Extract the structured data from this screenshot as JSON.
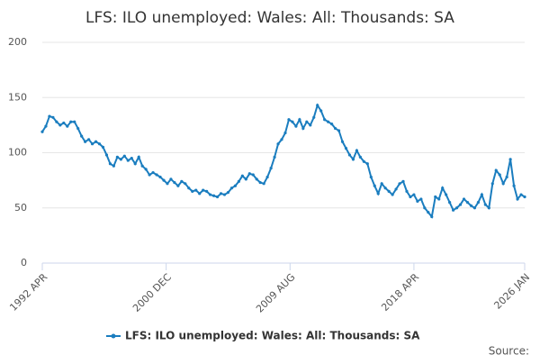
{
  "chart_data": {
    "type": "line",
    "title": "LFS: ILO unemployed: Wales: All: Thousands: SA",
    "x": [
      "1992-04",
      "1992-07",
      "1992-10",
      "1993-01",
      "1993-04",
      "1993-07",
      "1993-10",
      "1994-01",
      "1994-04",
      "1994-07",
      "1994-10",
      "1995-01",
      "1995-04",
      "1995-07",
      "1995-10",
      "1996-01",
      "1996-04",
      "1996-07",
      "1996-10",
      "1997-01",
      "1997-04",
      "1997-07",
      "1997-10",
      "1998-01",
      "1998-04",
      "1998-07",
      "1998-10",
      "1999-01",
      "1999-04",
      "1999-07",
      "1999-10",
      "2000-01",
      "2000-04",
      "2000-07",
      "2000-10",
      "2001-01",
      "2001-04",
      "2001-07",
      "2001-10",
      "2002-01",
      "2002-04",
      "2002-07",
      "2002-10",
      "2003-01",
      "2003-04",
      "2003-07",
      "2003-10",
      "2004-01",
      "2004-04",
      "2004-07",
      "2004-10",
      "2005-01",
      "2005-04",
      "2005-07",
      "2005-10",
      "2006-01",
      "2006-04",
      "2006-07",
      "2006-10",
      "2007-01",
      "2007-04",
      "2007-07",
      "2007-10",
      "2008-01",
      "2008-04",
      "2008-07",
      "2008-10",
      "2009-01",
      "2009-04",
      "2009-07",
      "2009-10",
      "2010-01",
      "2010-04",
      "2010-07",
      "2010-10",
      "2011-01",
      "2011-04",
      "2011-07",
      "2011-10",
      "2012-01",
      "2012-04",
      "2012-07",
      "2012-10",
      "2013-01",
      "2013-04",
      "2013-07",
      "2013-10",
      "2014-01",
      "2014-04",
      "2014-07",
      "2014-10",
      "2015-01",
      "2015-04",
      "2015-07",
      "2015-10",
      "2016-01",
      "2016-04",
      "2016-07",
      "2016-10",
      "2017-01",
      "2017-04",
      "2017-07",
      "2017-10",
      "2018-01",
      "2018-04",
      "2018-07",
      "2018-10",
      "2019-01",
      "2019-04",
      "2019-07",
      "2019-10",
      "2020-01",
      "2020-04",
      "2020-07",
      "2020-10",
      "2021-01",
      "2021-04",
      "2021-07",
      "2021-10",
      "2022-01",
      "2022-04",
      "2022-07",
      "2022-10",
      "2023-01",
      "2023-04",
      "2023-07",
      "2023-10",
      "2024-01",
      "2024-04",
      "2024-07",
      "2024-10",
      "2025-01",
      "2025-04",
      "2025-07",
      "2025-10",
      "2026-01"
    ],
    "series": [
      {
        "name": "LFS: ILO unemployed: Wales: All: Thousands: SA",
        "color": "#1a7dbf",
        "values": [
          119,
          124,
          133,
          132,
          128,
          125,
          127,
          124,
          128,
          128,
          122,
          115,
          110,
          112,
          108,
          110,
          108,
          105,
          98,
          90,
          88,
          96,
          94,
          97,
          93,
          95,
          90,
          96,
          88,
          85,
          80,
          82,
          80,
          78,
          75,
          72,
          76,
          73,
          70,
          74,
          72,
          68,
          65,
          66,
          63,
          66,
          65,
          62,
          61,
          60,
          63,
          62,
          64,
          68,
          70,
          74,
          79,
          76,
          81,
          80,
          76,
          73,
          72,
          78,
          86,
          96,
          108,
          112,
          118,
          130,
          128,
          124,
          130,
          122,
          128,
          125,
          132,
          143,
          138,
          130,
          128,
          126,
          122,
          120,
          110,
          104,
          98,
          94,
          102,
          96,
          92,
          90,
          78,
          70,
          63,
          72,
          68,
          65,
          62,
          67,
          72,
          74,
          65,
          60,
          62,
          56,
          58,
          50,
          46,
          42,
          60,
          58,
          68,
          62,
          55,
          48,
          50,
          53,
          58,
          55,
          52,
          50,
          55,
          62,
          53,
          50,
          72,
          84,
          80,
          72,
          78,
          94,
          70,
          58,
          62,
          60
        ]
      }
    ],
    "xlim": [
      "1992-04",
      "2026-01"
    ],
    "xticks": [
      {
        "value": "1992-04",
        "label": "1992 APR"
      },
      {
        "value": "2000-12",
        "label": "2000 DEC"
      },
      {
        "value": "2009-08",
        "label": "2009 AUG"
      },
      {
        "value": "2018-04",
        "label": "2018 APR"
      },
      {
        "value": "2026-01",
        "label": "2026 JAN"
      }
    ],
    "ylim": [
      0,
      200
    ],
    "yticks": [
      0,
      50,
      100,
      150,
      200
    ],
    "grid": true,
    "source": "Source:"
  }
}
